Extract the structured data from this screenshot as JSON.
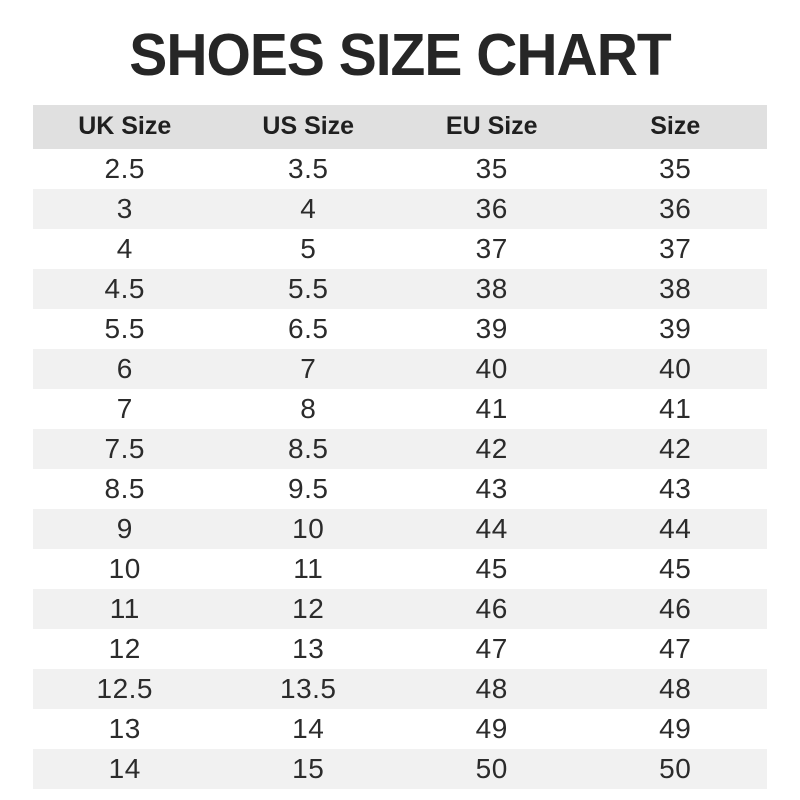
{
  "page_title": "SHOES SIZE CHART",
  "chart_data": {
    "type": "table",
    "title": "SHOES SIZE CHART",
    "columns": [
      "UK Size",
      "US Size",
      "EU Size",
      "Size"
    ],
    "rows": [
      [
        "2.5",
        "3.5",
        "35",
        "35"
      ],
      [
        "3",
        "4",
        "36",
        "36"
      ],
      [
        "4",
        "5",
        "37",
        "37"
      ],
      [
        "4.5",
        "5.5",
        "38",
        "38"
      ],
      [
        "5.5",
        "6.5",
        "39",
        "39"
      ],
      [
        "6",
        "7",
        "40",
        "40"
      ],
      [
        "7",
        "8",
        "41",
        "41"
      ],
      [
        "7.5",
        "8.5",
        "42",
        "42"
      ],
      [
        "8.5",
        "9.5",
        "43",
        "43"
      ],
      [
        "9",
        "10",
        "44",
        "44"
      ],
      [
        "10",
        "11",
        "45",
        "45"
      ],
      [
        "11",
        "12",
        "46",
        "46"
      ],
      [
        "12",
        "13",
        "47",
        "47"
      ],
      [
        "12.5",
        "13.5",
        "48",
        "48"
      ],
      [
        "13",
        "14",
        "49",
        "49"
      ],
      [
        "14",
        "15",
        "50",
        "50"
      ]
    ]
  },
  "colors": {
    "page_bg": "#ffffff",
    "header_bg": "#e0e0e0",
    "row_alt_bg": "#f1f1f1",
    "title_text": "#262626",
    "cell_text": "#2b2b2b"
  }
}
